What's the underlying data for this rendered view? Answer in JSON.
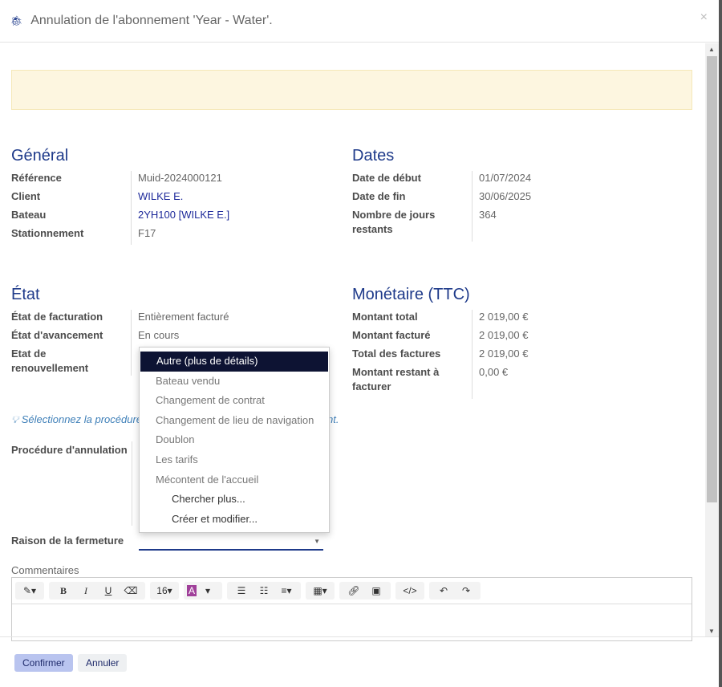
{
  "dialog": {
    "title": "Annulation de l'abonnement 'Year - Water'.",
    "close": "×",
    "icon": "bug-icon"
  },
  "general": {
    "title": "Général",
    "rows": [
      {
        "label": "Référence",
        "value": "Muid-2024000121"
      },
      {
        "label": "Client",
        "value": "WILKE E."
      },
      {
        "label": "Bateau",
        "value": "2YH100 [WILKE E.]"
      },
      {
        "label": "Stationnement",
        "value": "F17"
      }
    ]
  },
  "dates": {
    "title": "Dates",
    "rows": [
      {
        "label": "Date de début",
        "value": "01/07/2024"
      },
      {
        "label": "Date de fin",
        "value": "30/06/2025"
      },
      {
        "label": "Nombre de jours restants",
        "value": "364"
      }
    ]
  },
  "etat": {
    "title": "État",
    "rows": [
      {
        "label": "État de facturation",
        "value": "Entièrement facturé"
      },
      {
        "label": "État d'avancement",
        "value": "En cours"
      },
      {
        "label": "Etat de renouvellement",
        "value": ""
      }
    ]
  },
  "monetaire": {
    "title": "Monétaire (TTC)",
    "rows": [
      {
        "label": "Montant total",
        "value": "2 019,00 €"
      },
      {
        "label": "Montant facturé",
        "value": "2 019,00 €"
      },
      {
        "label": "Total des factures",
        "value": "2 019,00 €"
      },
      {
        "label": "Montant restant à facturer",
        "value": "0,00 €"
      }
    ]
  },
  "hint": {
    "start": "Sélectionnez la procédure",
    "end": "nt."
  },
  "form": {
    "procedure_label": "Procédure d'annulation",
    "raison_label": "Raison de la fermeture",
    "raison_value": "",
    "comments_label": "Commentaires"
  },
  "dropdown": {
    "options": [
      "Autre (plus de détails)",
      "Bateau vendu",
      "Changement de contrat",
      "Changement de lieu de navigation",
      "Doublon",
      "Les tarifs",
      "Mécontent de l'accueil"
    ],
    "selected": "Autre (plus de détails)",
    "actions": [
      "Chercher plus...",
      "Créer et modifier..."
    ]
  },
  "toolbar": {
    "font_size": "16"
  },
  "footer": {
    "confirm": "Confirmer",
    "cancel": "Annuler"
  }
}
